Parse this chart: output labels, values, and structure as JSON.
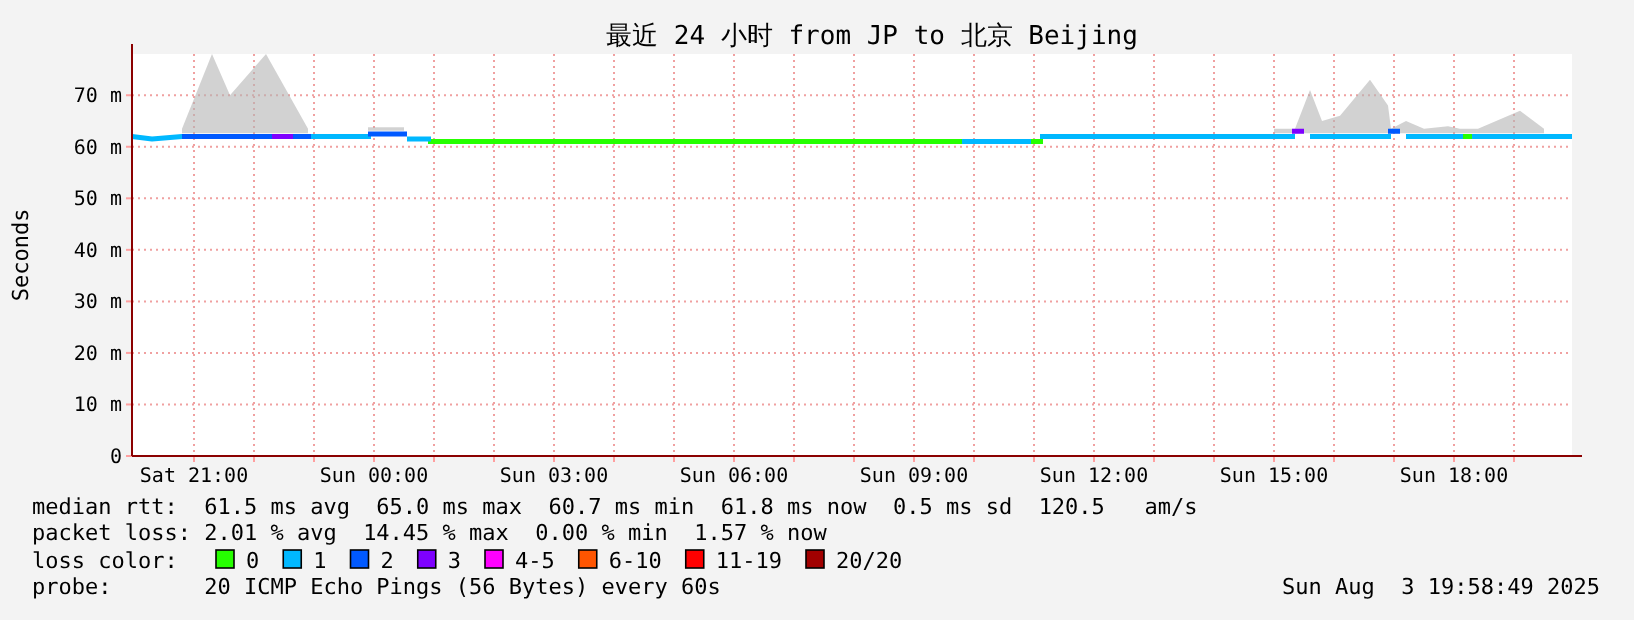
{
  "chart_data": {
    "type": "line",
    "title": "最近 24 小时 from JP to 北京 Beijing",
    "ylabel": "Seconds",
    "legend_title": "loss color:",
    "legend": "bottom",
    "grid": true,
    "marker": "none",
    "line_style": "solid",
    "xlim": [
      "2025-08-02T19:58",
      "2025-08-03T19:58"
    ],
    "xticks": [
      {
        "value": "2025-08-02T21:00",
        "label": "Sat 21:00"
      },
      {
        "value": "2025-08-02T22:00",
        "label": null
      },
      {
        "value": "2025-08-02T23:00",
        "label": null
      },
      {
        "value": "2025-08-03T00:00",
        "label": "Sun 00:00"
      },
      {
        "value": "2025-08-03T01:00",
        "label": null
      },
      {
        "value": "2025-08-03T02:00",
        "label": null
      },
      {
        "value": "2025-08-03T03:00",
        "label": "Sun 03:00"
      },
      {
        "value": "2025-08-03T04:00",
        "label": null
      },
      {
        "value": "2025-08-03T05:00",
        "label": null
      },
      {
        "value": "2025-08-03T06:00",
        "label": "Sun 06:00"
      },
      {
        "value": "2025-08-03T07:00",
        "label": null
      },
      {
        "value": "2025-08-03T08:00",
        "label": null
      },
      {
        "value": "2025-08-03T09:00",
        "label": "Sun 09:00"
      },
      {
        "value": "2025-08-03T10:00",
        "label": null
      },
      {
        "value": "2025-08-03T11:00",
        "label": null
      },
      {
        "value": "2025-08-03T12:00",
        "label": "Sun 12:00"
      },
      {
        "value": "2025-08-03T13:00",
        "label": null
      },
      {
        "value": "2025-08-03T14:00",
        "label": null
      },
      {
        "value": "2025-08-03T15:00",
        "label": "Sun 15:00"
      },
      {
        "value": "2025-08-03T16:00",
        "label": null
      },
      {
        "value": "2025-08-03T17:00",
        "label": null
      },
      {
        "value": "2025-08-03T18:00",
        "label": "Sun 18:00"
      },
      {
        "value": "2025-08-03T19:00",
        "label": null
      }
    ],
    "ylim": [
      0,
      78
    ],
    "yticks": [
      0,
      {
        "value": 10,
        "label": "10 m"
      },
      {
        "value": 20,
        "label": "20 m"
      },
      {
        "value": 30,
        "label": "30 m"
      },
      {
        "value": 40,
        "label": "40 m"
      },
      {
        "value": 50,
        "label": "50 m"
      },
      {
        "value": 60,
        "label": "60 m"
      },
      {
        "value": 70,
        "label": "70 m"
      }
    ],
    "series": [
      {
        "name": "0",
        "color": "#26ff00",
        "x": [
          "2025-08-03T00:54",
          "2025-08-03T04:00",
          "2025-08-03T07:00",
          "2025-08-03T09:42",
          "2025-08-03T09:48",
          "2025-08-03T10:54",
          "2025-08-03T11:06",
          "2025-08-03T11:09",
          "2025-08-03T18:06",
          "2025-08-03T18:18"
        ],
        "values": [
          61,
          61,
          61,
          61,
          null,
          61,
          61,
          null,
          62,
          62
        ]
      },
      {
        "name": "1",
        "color": "#00b8ff",
        "x": [
          "2025-08-02T19:58",
          "2025-08-02T20:18",
          "2025-08-02T20:48",
          "2025-08-02T20:51",
          "2025-08-02T22:54",
          "2025-08-02T23:54",
          "2025-08-02T23:57",
          "2025-08-03T00:33",
          "2025-08-03T00:54",
          "2025-08-03T00:57",
          "2025-08-03T09:48",
          "2025-08-03T10:54",
          "2025-08-03T10:57",
          "2025-08-03T11:06",
          "2025-08-03T12:00",
          "2025-08-03T13:00",
          "2025-08-03T14:00",
          "2025-08-03T15:00",
          "2025-08-03T15:18",
          "2025-08-03T15:21",
          "2025-08-03T15:36",
          "2025-08-03T15:48",
          "2025-08-03T16:06",
          "2025-08-03T16:36",
          "2025-08-03T16:54",
          "2025-08-03T16:57",
          "2025-08-03T17:12",
          "2025-08-03T17:30",
          "2025-08-03T17:54",
          "2025-08-03T18:06",
          "2025-08-03T18:09",
          "2025-08-03T18:18",
          "2025-08-03T18:24",
          "2025-08-03T19:06",
          "2025-08-03T19:30",
          "2025-08-03T19:58"
        ],
        "values": [
          62,
          61.5,
          62,
          null,
          62,
          62,
          null,
          61.5,
          61.5,
          null,
          61,
          61,
          null,
          62,
          62,
          62,
          62,
          62,
          62,
          null,
          62,
          62,
          62,
          62,
          62,
          null,
          62,
          62,
          62,
          62,
          null,
          62,
          62,
          62,
          62,
          62
        ],
        "lower": [
          null,
          null,
          null,
          null,
          null,
          null,
          null,
          null,
          null,
          null,
          null,
          null,
          null,
          null,
          null,
          null,
          null,
          62.6,
          62.6,
          62.6,
          62.6,
          62.6,
          62.6,
          62.6,
          62.6,
          62.6,
          62.6,
          62.6,
          62.6,
          62.6,
          62.6,
          62.6,
          62.6,
          62.6,
          62.6,
          null
        ],
        "upper": [
          null,
          null,
          null,
          null,
          null,
          null,
          null,
          null,
          null,
          null,
          null,
          null,
          null,
          null,
          null,
          null,
          null,
          63.5,
          63.5,
          63.5,
          71,
          65,
          66,
          73,
          68,
          63.5,
          65,
          63.5,
          64,
          63.5,
          63.5,
          63.5,
          63.5,
          67,
          63.5,
          null
        ]
      },
      {
        "name": "2",
        "color": "#0059ff",
        "x": [
          "2025-08-02T20:48",
          "2025-08-02T21:18",
          "2025-08-02T21:36",
          "2025-08-02T22:12",
          "2025-08-02T22:54",
          "2025-08-02T22:57",
          "2025-08-02T23:54",
          "2025-08-03T00:30",
          "2025-08-03T00:33",
          "2025-08-03T16:54",
          "2025-08-03T17:06"
        ],
        "values": [
          62,
          62,
          62,
          62,
          62,
          null,
          62.5,
          62.5,
          null,
          63,
          63
        ],
        "lower": [
          62.6,
          62.6,
          62.6,
          62.6,
          62.6,
          null,
          63.1,
          63.1,
          null,
          null,
          null
        ],
        "upper": [
          63.5,
          78,
          70,
          78,
          63.5,
          null,
          63.8,
          63.8,
          null,
          null,
          null
        ]
      },
      {
        "name": "3",
        "color": "#7e00ff",
        "x": [
          "2025-08-02T22:18",
          "2025-08-02T22:36",
          "2025-08-02T22:39",
          "2025-08-03T15:18",
          "2025-08-03T15:30"
        ],
        "values": [
          62,
          62,
          null,
          63,
          63
        ]
      },
      {
        "name": "4-5",
        "color": "#ff00ff"
      },
      {
        "name": "6-10",
        "color": "#ff5500"
      },
      {
        "name": "11-19",
        "color": "#ff0000"
      },
      {
        "name": "20/20",
        "color": "#a10000"
      }
    ],
    "annotations": [
      "median rtt:  61.5 ms avg  65.0 ms max  60.7 ms min  61.8 ms now  0.5 ms sd  120.5   am/s",
      "packet loss: 2.01 % avg  14.45 % max  0.00 % min  1.57 % now",
      "probe:       20 ICMP Echo Pings (56 Bytes) every 60s",
      "Sun Aug  3 19:58:49 2025"
    ]
  }
}
